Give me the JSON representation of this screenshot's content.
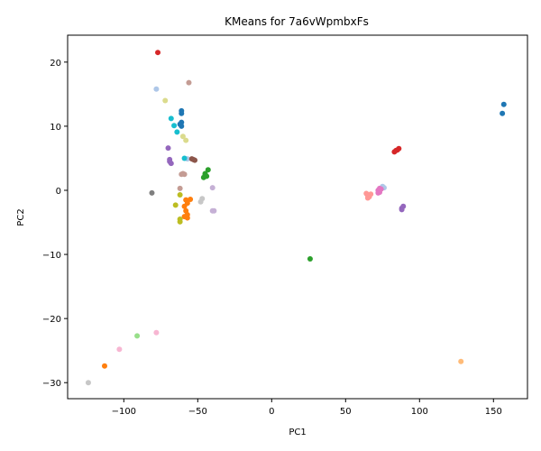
{
  "chart_data": {
    "type": "scatter",
    "title": "KMeans for 7a6vWpmbxFs",
    "xlabel": "PC1",
    "ylabel": "PC2",
    "xlim": [
      -138,
      173
    ],
    "ylim": [
      -32.5,
      24.2
    ],
    "xticks": [
      -100,
      -50,
      0,
      50,
      100,
      150
    ],
    "yticks": [
      -30,
      -20,
      -10,
      0,
      10,
      20
    ],
    "grid": false,
    "legend": "none",
    "series": [
      {
        "color": "#1f77b4",
        "points": [
          [
            156,
            12
          ],
          [
            157,
            13.4
          ],
          [
            -61,
            12
          ],
          [
            -61,
            12.4
          ],
          [
            -61,
            10.6
          ],
          [
            -61,
            10
          ],
          [
            -62,
            10.3
          ]
        ]
      },
      {
        "color": "#aec7e8",
        "points": [
          [
            -78,
            15.8
          ],
          [
            75,
            0.6
          ],
          [
            76,
            0.4
          ],
          [
            -57,
            4.9
          ]
        ]
      },
      {
        "color": "#ff7f0e",
        "points": [
          [
            -113,
            -27.4
          ],
          [
            -58,
            -1.5
          ],
          [
            -57,
            -2.0
          ],
          [
            -59,
            -2.5
          ],
          [
            -58,
            -3.2
          ],
          [
            -57,
            -3.8
          ],
          [
            -57,
            -4.3
          ],
          [
            -59,
            -4.1
          ],
          [
            -55,
            -1.4
          ]
        ]
      },
      {
        "color": "#ffbb78",
        "points": [
          [
            128,
            -26.7
          ]
        ]
      },
      {
        "color": "#2ca02c",
        "points": [
          [
            26,
            -10.7
          ],
          [
            -43,
            3.2
          ],
          [
            -45,
            2.4
          ],
          [
            -44,
            2.2
          ],
          [
            -46,
            2.0
          ],
          [
            -45,
            2.6
          ]
        ]
      },
      {
        "color": "#98df8a",
        "points": [
          [
            -91,
            -22.7
          ]
        ]
      },
      {
        "color": "#d62728",
        "points": [
          [
            -77,
            21.5
          ],
          [
            83,
            6.0
          ],
          [
            84,
            6.2
          ],
          [
            85,
            6.3
          ],
          [
            86,
            6.5
          ]
        ]
      },
      {
        "color": "#ff9896",
        "points": [
          [
            64,
            -0.5
          ],
          [
            65,
            -0.8
          ],
          [
            66,
            -1.0
          ],
          [
            67,
            -0.6
          ],
          [
            65,
            -1.2
          ]
        ]
      },
      {
        "color": "#9467bd",
        "points": [
          [
            -70,
            6.6
          ],
          [
            -69,
            4.5
          ],
          [
            -68,
            4.2
          ],
          [
            -69,
            4.8
          ],
          [
            88,
            -2.8
          ],
          [
            89,
            -2.5
          ],
          [
            88,
            -3.0
          ]
        ]
      },
      {
        "color": "#c5b0d5",
        "points": [
          [
            -40,
            0.4
          ],
          [
            -40,
            -3.2
          ],
          [
            -39,
            -3.2
          ]
        ]
      },
      {
        "color": "#8c564b",
        "points": [
          [
            -53,
            4.8
          ],
          [
            -54,
            4.9
          ],
          [
            -52,
            4.7
          ]
        ]
      },
      {
        "color": "#c49c94",
        "points": [
          [
            -56,
            16.8
          ],
          [
            -61,
            2.5
          ],
          [
            -59,
            2.5
          ],
          [
            -60,
            2.6
          ],
          [
            -62,
            0.3
          ]
        ]
      },
      {
        "color": "#e377c2",
        "points": [
          [
            72,
            0.0
          ],
          [
            73,
            -0.3
          ],
          [
            74,
            0.2
          ],
          [
            72,
            -0.4
          ],
          [
            73,
            0.3
          ]
        ]
      },
      {
        "color": "#f7b6d2",
        "points": [
          [
            -78,
            -22.2
          ],
          [
            -103,
            -24.8
          ]
        ]
      },
      {
        "color": "#7f7f7f",
        "points": [
          [
            -81,
            -0.4
          ]
        ]
      },
      {
        "color": "#c7c7c7",
        "points": [
          [
            -124,
            -30
          ],
          [
            -47,
            -1.3
          ],
          [
            -48,
            -1.8
          ]
        ]
      },
      {
        "color": "#bcbd22",
        "points": [
          [
            -65,
            -2.3
          ],
          [
            -62,
            -0.7
          ],
          [
            -62,
            -4.5
          ],
          [
            -62,
            -4.9
          ]
        ]
      },
      {
        "color": "#dbdb8d",
        "points": [
          [
            -72,
            14.0
          ],
          [
            -60,
            8.4
          ],
          [
            -58,
            7.8
          ]
        ]
      },
      {
        "color": "#17becf",
        "points": [
          [
            -68,
            11.2
          ],
          [
            -66,
            10.1
          ],
          [
            -64,
            9.1
          ],
          [
            -59,
            5.0
          ]
        ]
      }
    ]
  }
}
